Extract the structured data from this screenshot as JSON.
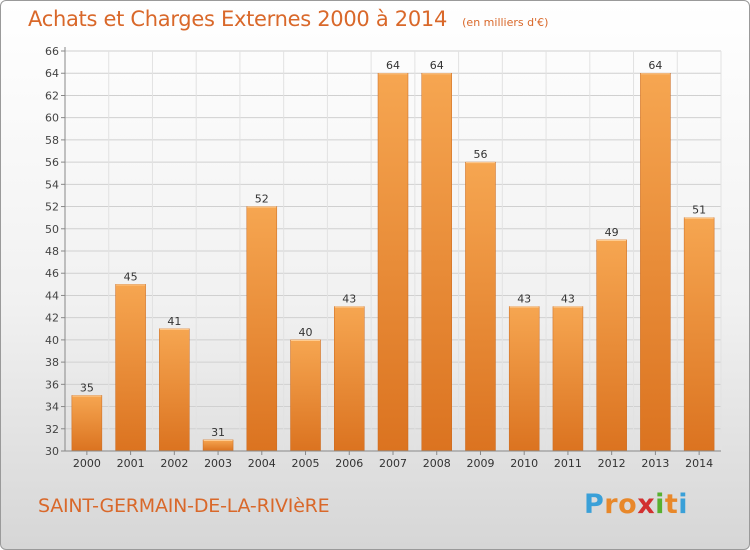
{
  "header": {
    "title": "Achats et Charges Externes 2000 à 2014",
    "unit_note": "(en milliers d'€)"
  },
  "footer": {
    "commune": "SAINT-GERMAIN-DE-LA-RIVIèRE",
    "brand_letters": [
      "P",
      "r",
      "o",
      "x",
      "i",
      "t",
      "i"
    ]
  },
  "colors": {
    "bar_light": "#f6a651",
    "bar_dark": "#db7320",
    "accent": "#d9682a",
    "brand": [
      "#3aa0d8",
      "#e8882a",
      "#e8882a",
      "#d23030",
      "#58b030",
      "#e8882a",
      "#3aa0d8"
    ]
  },
  "chart_data": {
    "type": "bar",
    "categories": [
      "2000",
      "2001",
      "2002",
      "2003",
      "2004",
      "2005",
      "2006",
      "2007",
      "2008",
      "2009",
      "2010",
      "2011",
      "2012",
      "2013",
      "2014"
    ],
    "values": [
      35,
      45,
      41,
      31,
      52,
      40,
      43,
      64,
      64,
      56,
      43,
      43,
      49,
      64,
      51
    ],
    "data_labels": [
      "35",
      "45",
      "41",
      "31",
      "52",
      "40",
      "43",
      "64",
      "64",
      "56",
      "43",
      "43",
      "49",
      "64",
      "51"
    ],
    "ylim": [
      30,
      66
    ],
    "yticks": [
      30,
      32,
      34,
      36,
      38,
      40,
      42,
      44,
      46,
      48,
      50,
      52,
      54,
      56,
      58,
      60,
      62,
      64,
      66
    ],
    "grid": true,
    "xlabel": "",
    "ylabel": ""
  }
}
